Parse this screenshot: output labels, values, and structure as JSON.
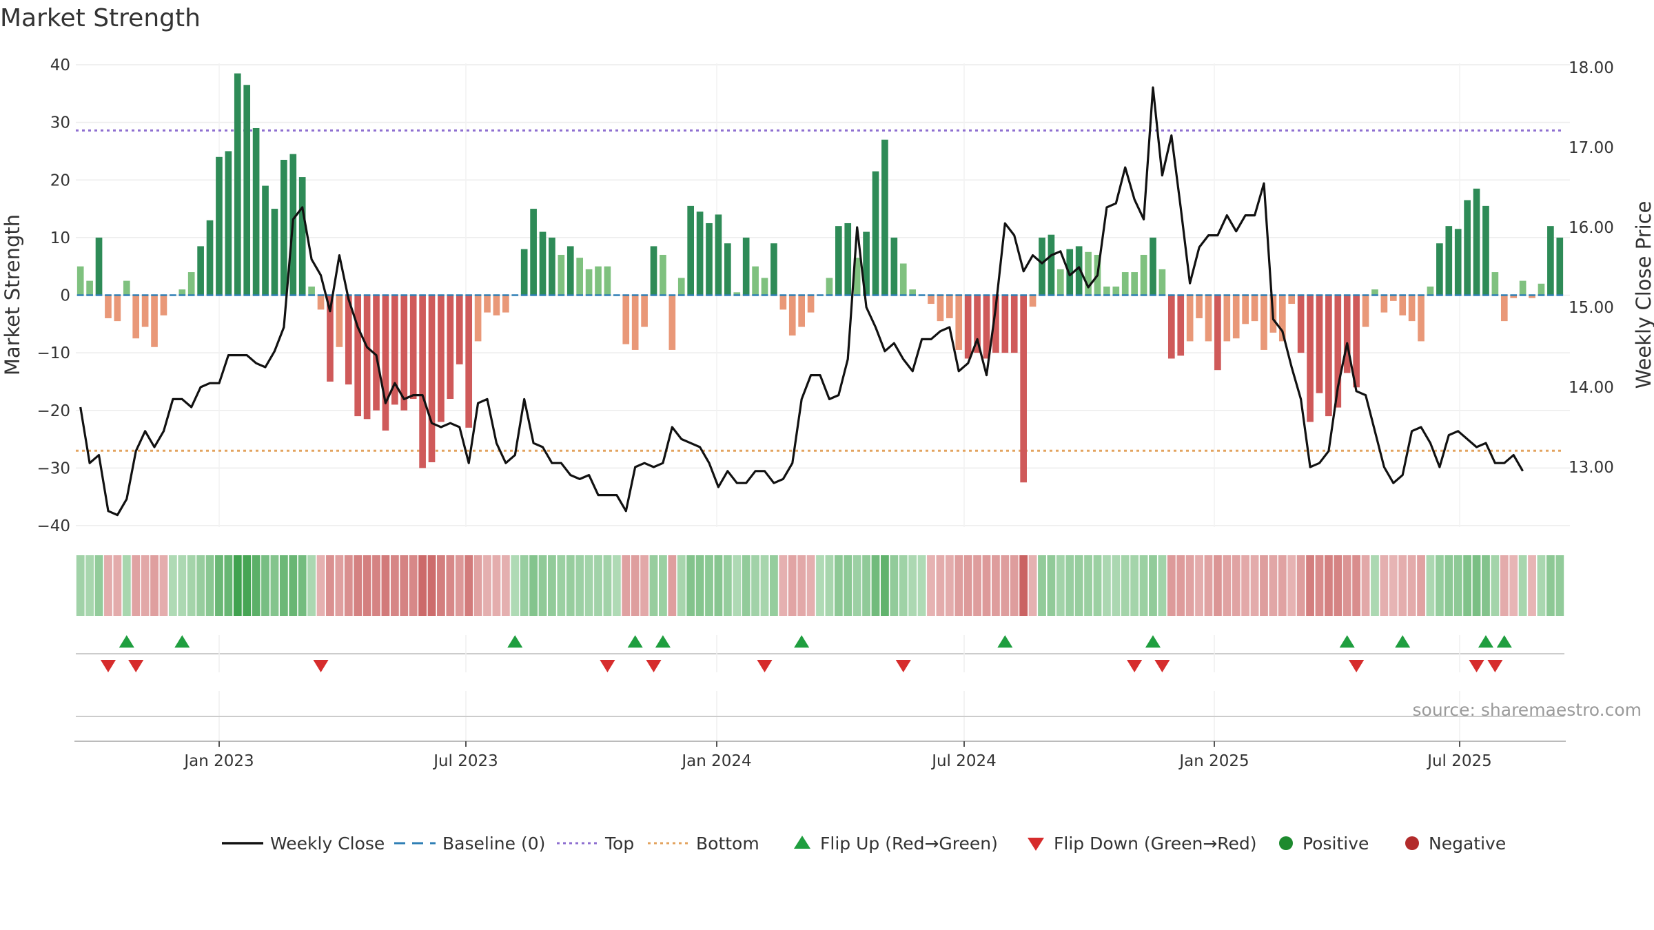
{
  "title": "Market Strength",
  "source_note": "source: sharemaestro.com",
  "chart_data": {
    "type": "bar",
    "left_axis": {
      "label": "Market Strength",
      "ylim": [
        -40,
        40
      ],
      "ticks": [
        40,
        30,
        20,
        10,
        0,
        -10,
        -20,
        -30,
        -40
      ]
    },
    "right_axis": {
      "label": "Weekly Close Price",
      "ylim": [
        12.35,
        18.05
      ],
      "ticks": [
        "18.00",
        "17.00",
        "16.00",
        "15.00",
        "14.00",
        "13.00"
      ]
    },
    "x_axis": {
      "ticks": [
        "Jan 2023",
        "Jul 2023",
        "Jan 2024",
        "Jul 2024",
        "Jan 2025",
        "Jul 2025"
      ]
    },
    "top_level": 28.6,
    "bottom_level": -27.0,
    "series": [
      {
        "name": "Market Strength (bars)",
        "values": [
          5,
          2.5,
          10,
          -4,
          -4.5,
          2.5,
          -7.5,
          -5.5,
          -9,
          -3.5,
          0,
          1,
          4,
          8.5,
          13,
          24,
          25,
          38.5,
          36.5,
          29,
          19,
          15,
          23.5,
          24.5,
          20.5,
          1.5,
          -2.5,
          -15,
          -9,
          -15.5,
          -21,
          -21.5,
          -20,
          -23.5,
          -19,
          -20,
          -18,
          -30,
          -29,
          -22,
          -18,
          -12,
          -23,
          -8,
          -3,
          -3.5,
          -3,
          0,
          8,
          15,
          11,
          10,
          7,
          8.5,
          6.5,
          4.5,
          5,
          5,
          0,
          -8.5,
          -9.5,
          -5.5,
          8.5,
          7,
          -9.5,
          3,
          15.5,
          14.5,
          12.5,
          14,
          9,
          0.5,
          10,
          5,
          3,
          9,
          -2.5,
          -7,
          -5.5,
          -3,
          0,
          3,
          12,
          12.5,
          6.5,
          11,
          21.5,
          27,
          10,
          5.5,
          1,
          0,
          -1.5,
          -4.5,
          -4,
          -9.5,
          -11,
          -10,
          -11,
          -10,
          -10,
          -10,
          -32.5,
          -2,
          10,
          10.5,
          4.5,
          8,
          8.5,
          7.5,
          7,
          1.5,
          1.5,
          4,
          4,
          7,
          10,
          4.5,
          -11,
          -10.5,
          -8,
          -4,
          -8,
          -13,
          -8,
          -7.5,
          -5,
          -4.5,
          -9.5,
          -6.5,
          -8,
          -1.5,
          -10,
          -22,
          -17,
          -21,
          -19.5,
          -13.5,
          -16,
          -5.5,
          1,
          -3,
          -1,
          -3.5,
          -4.5,
          -8,
          1.5,
          9,
          12,
          11.5,
          16.5,
          18.5,
          15.5,
          4,
          -4.5,
          -0.5,
          2.5,
          -0.5,
          2,
          12,
          10
        ]
      },
      {
        "name": "Weekly Close",
        "values": [
          13.75,
          13.05,
          13.15,
          12.45,
          12.4,
          12.6,
          13.2,
          13.45,
          13.25,
          13.45,
          13.85,
          13.85,
          13.75,
          14.0,
          14.05,
          14.05,
          14.4,
          14.4,
          14.4,
          14.3,
          14.25,
          14.45,
          14.75,
          16.1,
          16.25,
          15.6,
          15.4,
          14.95,
          15.65,
          15.1,
          14.75,
          14.5,
          14.4,
          13.8,
          14.05,
          13.85,
          13.9,
          13.9,
          13.55,
          13.5,
          13.55,
          13.5,
          13.05,
          13.8,
          13.85,
          13.3,
          13.05,
          13.15,
          13.85,
          13.3,
          13.25,
          13.05,
          13.05,
          12.9,
          12.85,
          12.9,
          12.65,
          12.65,
          12.65,
          12.45,
          13.0,
          13.05,
          13.0,
          13.05,
          13.5,
          13.35,
          13.3,
          13.25,
          13.05,
          12.75,
          12.95,
          12.8,
          12.8,
          12.95,
          12.95,
          12.8,
          12.85,
          13.05,
          13.85,
          14.15,
          14.15,
          13.85,
          13.9,
          14.35,
          16.0,
          15.0,
          14.75,
          14.45,
          14.55,
          14.35,
          14.2,
          14.6,
          14.6,
          14.7,
          14.75,
          14.2,
          14.3,
          14.6,
          14.15,
          15.0,
          16.05,
          15.9,
          15.45,
          15.65,
          15.55,
          15.65,
          15.7,
          15.4,
          15.5,
          15.25,
          15.4,
          16.25,
          16.3,
          16.75,
          16.35,
          16.1,
          17.75,
          16.65,
          17.15,
          16.25,
          15.3,
          15.75,
          15.9,
          15.9,
          16.15,
          15.95,
          16.15,
          16.15,
          16.55,
          14.85,
          14.7,
          14.25,
          13.85,
          13.0,
          13.05,
          13.2,
          14.0,
          14.55,
          13.95,
          13.9,
          13.45,
          13.0,
          12.8,
          12.9,
          13.45,
          13.5,
          13.3,
          13.0,
          13.4,
          13.45,
          13.35,
          13.25,
          13.3,
          13.05,
          13.05,
          13.15,
          12.95
        ]
      }
    ],
    "signal_strip": {
      "note": "colour intensity per week mirrors market strength"
    },
    "flip_up_weeks": [
      5,
      11,
      47,
      60,
      63,
      78,
      100,
      116,
      137,
      143,
      152,
      154
    ],
    "flip_down_weeks": [
      3,
      6,
      26,
      57,
      62,
      74,
      89,
      114,
      117,
      138,
      151,
      153
    ],
    "legend": [
      {
        "label": "Weekly Close",
        "style": "solid",
        "color": "#111111"
      },
      {
        "label": "Baseline (0)",
        "style": "dash",
        "color": "#2f7fb5"
      },
      {
        "label": "Top",
        "style": "dot",
        "color": "#8e6fd0"
      },
      {
        "label": "Bottom",
        "style": "dot",
        "color": "#e3a35f"
      },
      {
        "label": "Flip Up (Red→Green)",
        "style": "tri-up",
        "color": "#1f9e3f"
      },
      {
        "label": "Flip Down (Green→Red)",
        "style": "tri-down",
        "color": "#d62c2c"
      },
      {
        "label": "Positive",
        "style": "dot-marker",
        "color": "#1d8a2e"
      },
      {
        "label": "Negative",
        "style": "dot-marker",
        "color": "#b22b2b"
      }
    ],
    "legend_position": "bottom",
    "grid": true
  }
}
